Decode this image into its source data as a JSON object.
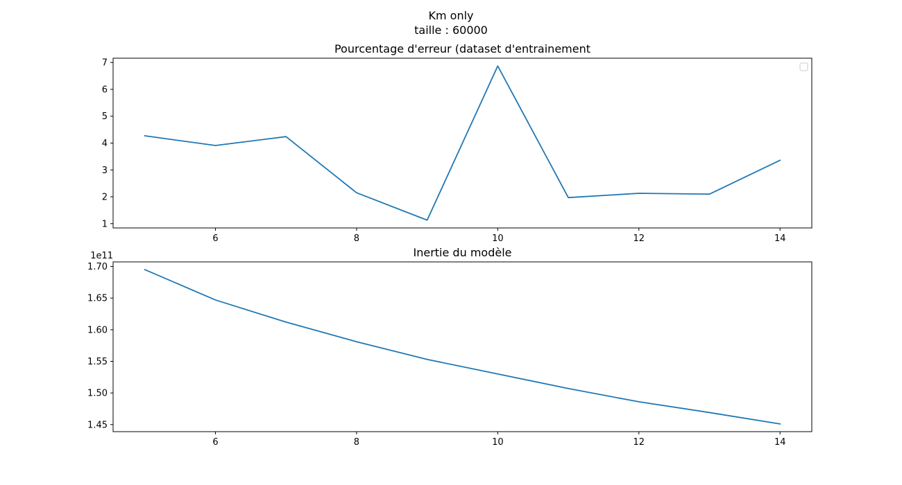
{
  "figure": {
    "suptitle_lines": [
      "Km only",
      "taille : 60000"
    ]
  },
  "chart_data": [
    {
      "type": "line",
      "title": "Pourcentage d'erreur (dataset d'entrainement",
      "xlabel": "",
      "ylabel": "",
      "x": [
        5,
        6,
        7,
        8,
        9,
        10,
        11,
        12,
        13,
        14
      ],
      "series": [
        {
          "values": [
            4.27,
            3.91,
            4.24,
            2.15,
            1.13,
            6.87,
            1.97,
            2.13,
            2.1,
            3.36
          ],
          "color": "#1f77b4"
        }
      ],
      "xlim": [
        4.55,
        14.45
      ],
      "ylim": [
        0.84,
        7.16
      ],
      "xticks": [
        6,
        8,
        10,
        12,
        14
      ],
      "xtick_labels": [
        "6",
        "8",
        "10",
        "12",
        "14"
      ],
      "yticks": [
        1,
        2,
        3,
        4,
        5,
        6,
        7
      ],
      "ytick_labels": [
        "1",
        "2",
        "3",
        "4",
        "5",
        "6",
        "7"
      ],
      "offset_text": "",
      "legend": {
        "placement": "upper right",
        "entries": []
      },
      "grid": false
    },
    {
      "type": "line",
      "title": "Inertie du modèle",
      "xlabel": "",
      "ylabel": "",
      "x": [
        5,
        6,
        7,
        8,
        9,
        10,
        11,
        12,
        13,
        14
      ],
      "series": [
        {
          "values": [
            169500000000.0,
            164700000000.0,
            161200000000.0,
            158100000000.0,
            155300000000.0,
            153000000000.0,
            150700000000.0,
            148600000000.0,
            146900000000.0,
            145100000000.0
          ],
          "color": "#1f77b4"
        }
      ],
      "xlim": [
        4.55,
        14.45
      ],
      "ylim": [
        143880000000.0,
        170720000000.0
      ],
      "xticks": [
        6,
        8,
        10,
        12,
        14
      ],
      "xtick_labels": [
        "6",
        "8",
        "10",
        "12",
        "14"
      ],
      "yticks": [
        145000000000.0,
        150000000000.0,
        155000000000.0,
        160000000000.0,
        165000000000.0,
        170000000000.0
      ],
      "ytick_labels": [
        "1.45",
        "1.50",
        "1.55",
        "1.60",
        "1.65",
        "1.70"
      ],
      "offset_text": "1e11",
      "grid": false
    }
  ]
}
